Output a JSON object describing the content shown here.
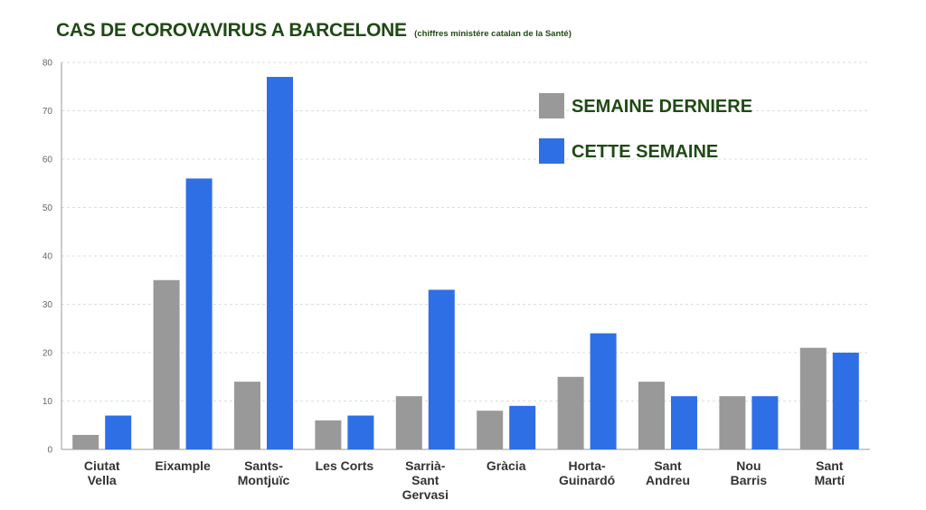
{
  "title": "CAS DE COROVAVIRUS A BARCELONE",
  "subtitle": "(chiffres ministére catalan de la Santé)",
  "colors": {
    "previous": "#999999",
    "current": "#2f6fe6",
    "grid": "#dddddd",
    "title": "#1f4a14"
  },
  "chart_data": {
    "type": "bar",
    "title": "CAS DE COROVAVIRUS A BARCELONE",
    "subtitle": "(chiffres ministére catalan de la Santé)",
    "categories": [
      [
        "Ciutat",
        "Vella"
      ],
      [
        "Eixample"
      ],
      [
        "Sants-",
        "Montjuïc"
      ],
      [
        "Les Corts"
      ],
      [
        "Sarrià-",
        "Sant",
        "Gervasi"
      ],
      [
        "Gràcia"
      ],
      [
        "Horta-",
        "Guinardó"
      ],
      [
        "Sant",
        "Andreu"
      ],
      [
        "Nou",
        "Barris"
      ],
      [
        "Sant",
        "Martí"
      ]
    ],
    "series": [
      {
        "name": "SEMAINE DERNIERE",
        "color": "#999999",
        "values": [
          3,
          35,
          14,
          6,
          11,
          8,
          15,
          14,
          11,
          21
        ]
      },
      {
        "name": "CETTE SEMAINE",
        "color": "#2f6fe6",
        "values": [
          7,
          56,
          77,
          7,
          33,
          9,
          24,
          11,
          11,
          20
        ]
      }
    ],
    "yticks": [
      0,
      10,
      20,
      30,
      40,
      50,
      60,
      70,
      80
    ],
    "ylim": [
      0,
      80
    ],
    "xlabel": "",
    "ylabel": "",
    "grid": true,
    "legend_position": "top-right"
  }
}
